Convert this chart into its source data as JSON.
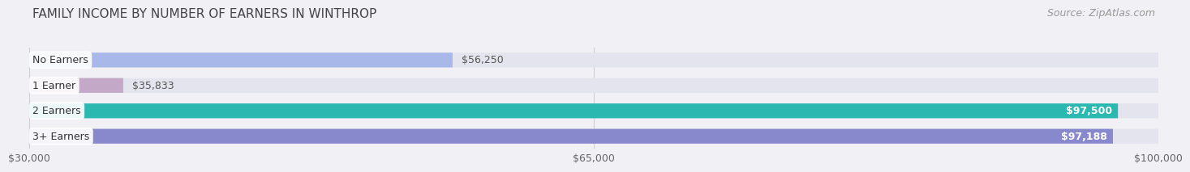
{
  "title": "FAMILY INCOME BY NUMBER OF EARNERS IN WINTHROP",
  "source": "Source: ZipAtlas.com",
  "categories": [
    "No Earners",
    "1 Earner",
    "2 Earners",
    "3+ Earners"
  ],
  "values": [
    56250,
    35833,
    97500,
    97188
  ],
  "bar_colors": [
    "#a8b8e8",
    "#c4a8c8",
    "#2ab8b0",
    "#8888cc"
  ],
  "xmin": 30000,
  "xmax": 100000,
  "xticks": [
    30000,
    65000,
    100000
  ],
  "xticklabels": [
    "$30,000",
    "$65,000",
    "$100,000"
  ],
  "background_color": "#f0f0f5",
  "bar_bg_color": "#e4e4ee",
  "title_fontsize": 11,
  "source_fontsize": 9,
  "label_fontsize": 9,
  "value_labels": [
    "$56,250",
    "$35,833",
    "$97,500",
    "$97,188"
  ]
}
